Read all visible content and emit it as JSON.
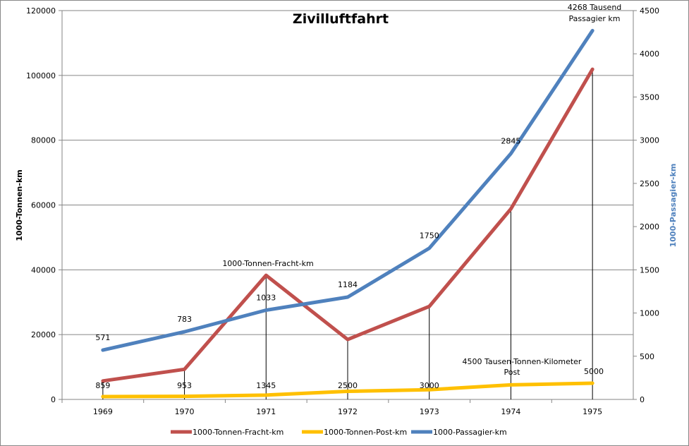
{
  "chart_data": {
    "type": "line",
    "title": "Zivilluftfahrt",
    "categories": [
      "1969",
      "1970",
      "1971",
      "1972",
      "1973",
      "1974",
      "1975"
    ],
    "ylabel": "1000-Tonnen-km",
    "y2label": "1000-Passagier-km",
    "ylim": [
      0,
      120000
    ],
    "y2lim": [
      0,
      4500
    ],
    "yticks": [
      "0",
      "20000",
      "40000",
      "60000",
      "80000",
      "100000",
      "120000"
    ],
    "y2ticks": [
      "0",
      "500",
      "1000",
      "1500",
      "2000",
      "2500",
      "3000",
      "3500",
      "4000",
      "4500"
    ],
    "grid": true,
    "legend_position": "bottom",
    "series": [
      {
        "name": "1000-Tonnen-Fracht-km",
        "axis": "left",
        "color": "#c0504d",
        "values": [
          5700,
          9300,
          38300,
          18500,
          28700,
          58800,
          101900
        ]
      },
      {
        "name": "1000-Tonnen-Post-km",
        "axis": "left",
        "color": "#ffc000",
        "values": [
          859,
          953,
          1345,
          2500,
          3000,
          4500,
          5000
        ],
        "labels": [
          "859",
          "953",
          "1345",
          "2500",
          "3000",
          "",
          ""
        ]
      },
      {
        "name": "1000-Passagier-km",
        "axis": "right",
        "color": "#4f81bd",
        "values": [
          571,
          783,
          1033,
          1184,
          1750,
          2845,
          4268
        ],
        "labels": [
          "571",
          "783",
          "1033",
          "1184",
          "1750",
          "2845",
          ""
        ]
      }
    ],
    "annotations": {
      "fracht": "1000-Tonnen-Fracht-km",
      "post_1": "4500 Tausen-Tonnen-Kilometer",
      "post_2": "Post",
      "post_1975": "5000",
      "pass_1": "4268 Tausend",
      "pass_2": "Passagier km"
    }
  }
}
